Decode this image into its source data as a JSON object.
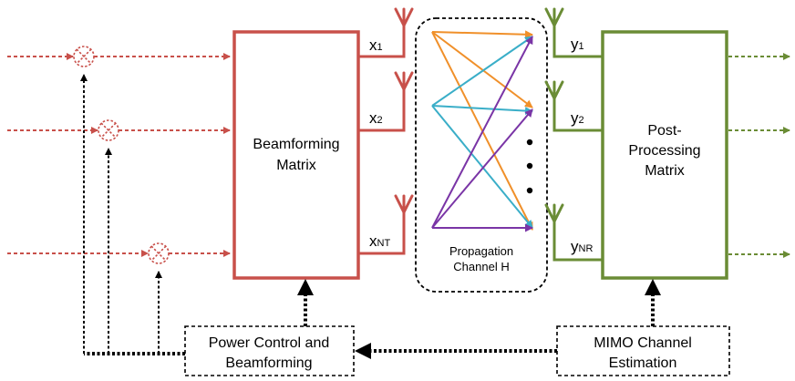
{
  "blocks": {
    "beamforming": [
      "Beamforming",
      "Matrix"
    ],
    "postprocessing": [
      "Post-",
      "Processing",
      "Matrix"
    ],
    "power_control": [
      "Power Control and",
      "Beamforming"
    ],
    "mimo_estimation": [
      "MIMO Channel",
      "Estimation"
    ],
    "channel": [
      "Propagation",
      "Channel H"
    ]
  },
  "tx_antennas": [
    {
      "base": "x",
      "sub": "1"
    },
    {
      "base": "x",
      "sub": "2"
    },
    {
      "base": "x",
      "sub": "NT"
    }
  ],
  "rx_antennas": [
    {
      "base": "y",
      "sub": "1"
    },
    {
      "base": "y",
      "sub": "2"
    },
    {
      "base": "y",
      "sub": "NR"
    }
  ],
  "colors": {
    "tx": "#c8504a",
    "rx": "#6a8c35",
    "path_orange": "#f0902a",
    "path_cyan": "#3aaec8",
    "path_purple": "#7a35a6",
    "control": "#000000"
  }
}
